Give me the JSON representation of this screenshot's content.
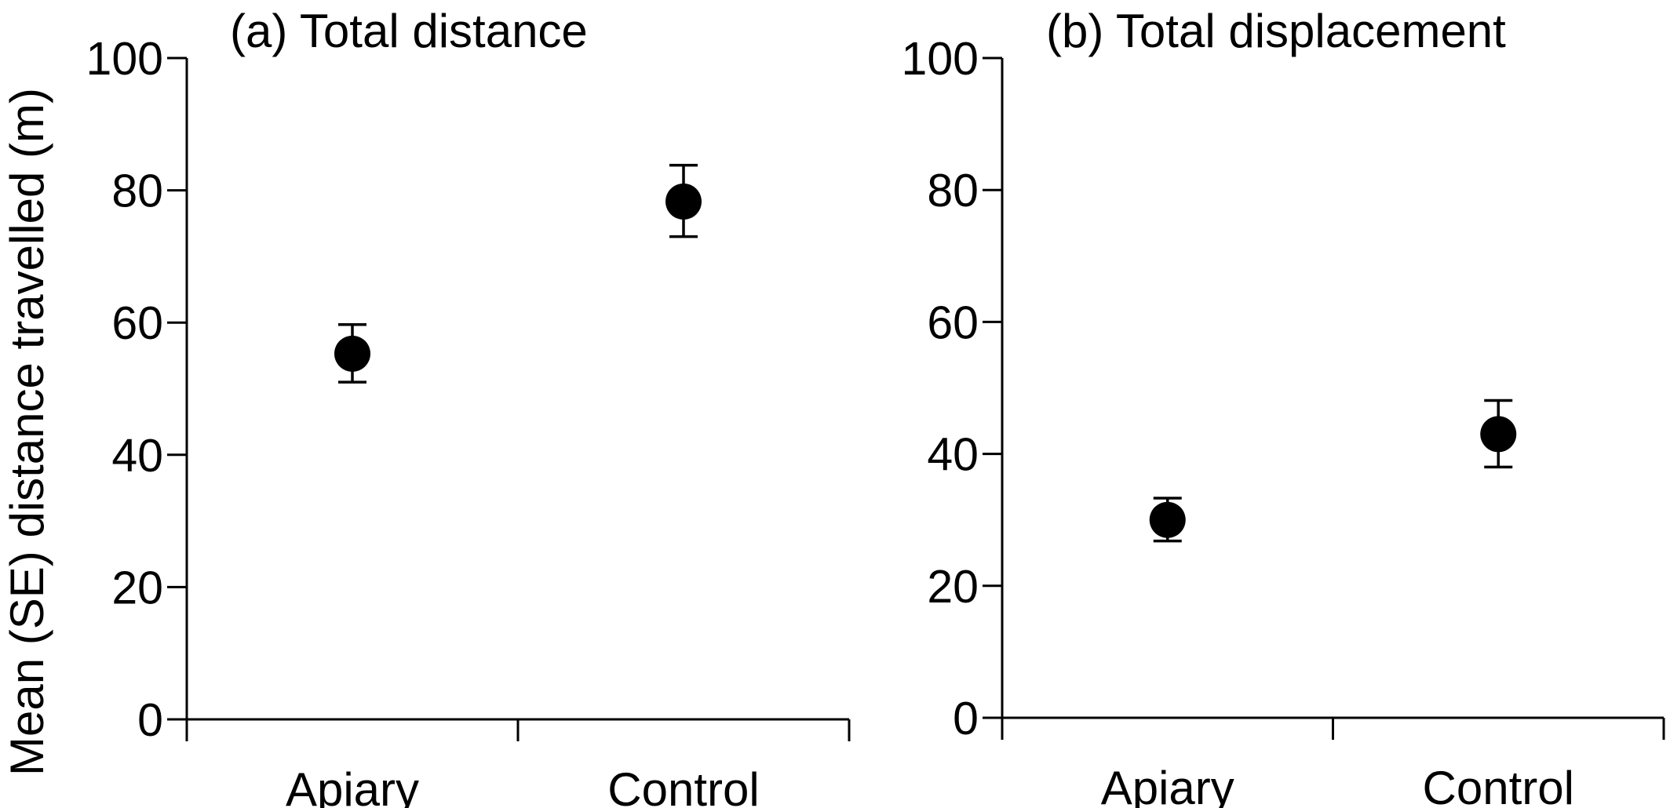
{
  "chart_data": [
    {
      "type": "scatter",
      "title": "(a) Total distance",
      "ylabel": "Mean (SE) distance travelled (m)",
      "xlabel": "",
      "categories": [
        "Apiary",
        "Control"
      ],
      "values": [
        55.3,
        78.3
      ],
      "error_low": [
        51.0,
        73.0
      ],
      "error_high": [
        59.7,
        83.8
      ],
      "ylim": [
        0,
        100
      ],
      "yticks": [
        0,
        20,
        40,
        60,
        80,
        100
      ],
      "grid": false,
      "marker_color": "#000000"
    },
    {
      "type": "scatter",
      "title": "(b) Total displacement",
      "ylabel": "",
      "xlabel": "",
      "categories": [
        "Apiary",
        "Control"
      ],
      "values": [
        30.0,
        43.0
      ],
      "error_low": [
        26.8,
        38.0
      ],
      "error_high": [
        33.3,
        48.1
      ],
      "ylim": [
        0,
        100
      ],
      "yticks": [
        0,
        20,
        40,
        60,
        80,
        100
      ],
      "grid": false,
      "marker_color": "#000000"
    }
  ]
}
